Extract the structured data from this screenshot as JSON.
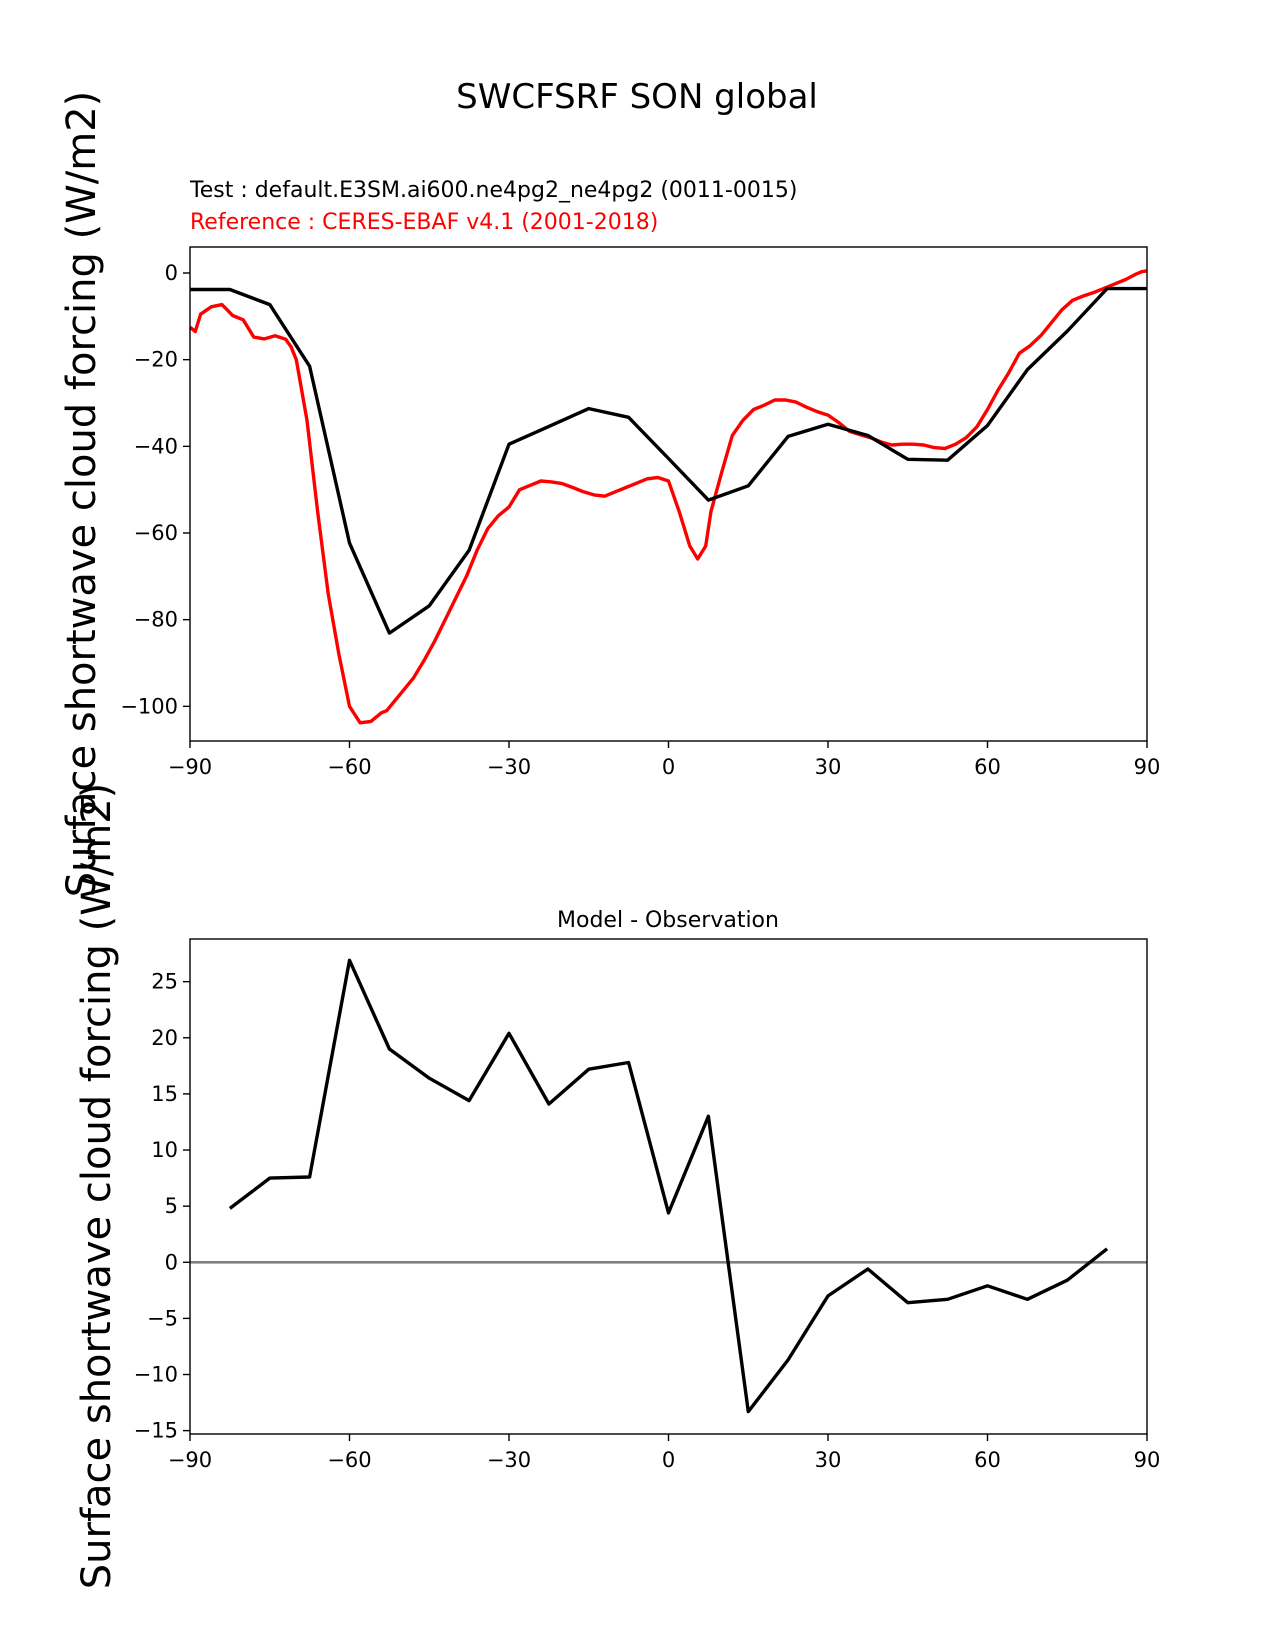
{
  "figure": {
    "title": "SWCFSRF SON global"
  },
  "chart_data": [
    {
      "type": "line",
      "subtitle_test": "Test : default.E3SM.ai600.ne4pg2_ne4pg2 (0011-0015)",
      "subtitle_reference": "Reference : CERES-EBAF v4.1 (2001-2018)",
      "xlabel": "",
      "ylabel": "Surface shortwave cloud forcing (W/m2)",
      "xlim": [
        -90,
        90
      ],
      "ylim": [
        -108,
        6
      ],
      "xticks": [
        -90,
        -60,
        -30,
        0,
        30,
        60,
        90
      ],
      "xtick_labels": [
        "−90",
        "−60",
        "−30",
        "0",
        "30",
        "60",
        "90"
      ],
      "yticks": [
        0,
        -20,
        -40,
        -60,
        -80,
        -100
      ],
      "ytick_labels": [
        "0",
        "−20",
        "−40",
        "−60",
        "−80",
        "−100"
      ],
      "grid": false,
      "series": [
        {
          "name": "Test",
          "color": "#000000",
          "x": [
            -90,
            -82.5,
            -75,
            -67.5,
            -60,
            -52.5,
            -45,
            -37.5,
            -30,
            -22.5,
            -15,
            -7.5,
            0,
            7.5,
            15,
            22.5,
            30,
            37.5,
            45,
            52.5,
            60,
            67.5,
            75,
            82.5,
            90
          ],
          "y": [
            -3.8,
            -3.8,
            -7.3,
            -21.5,
            -62.3,
            -83.1,
            -76.8,
            -64,
            -39.5,
            -35.4,
            -31.3,
            -33.3,
            -42.8,
            -52.4,
            -49.1,
            -37.7,
            -34.9,
            -37.5,
            -43,
            -43.2,
            -35.2,
            -22.3,
            -13.4,
            -3.6,
            -3.6
          ]
        },
        {
          "name": "Reference",
          "color": "#ff0000",
          "x": [
            -90,
            -89,
            -88,
            -86,
            -84,
            -83,
            -82,
            -80,
            -78,
            -76,
            -74,
            -72,
            -71,
            -70,
            -68,
            -66,
            -64,
            -62,
            -60,
            -58,
            -56,
            -54,
            -53,
            -52,
            -50,
            -48,
            -46,
            -44,
            -42,
            -40,
            -38,
            -36,
            -34,
            -32,
            -30,
            -28,
            -26,
            -24,
            -22,
            -20,
            -18,
            -16,
            -14,
            -12,
            -10,
            -8,
            -6,
            -4,
            -2,
            0,
            2,
            4,
            5.5,
            7,
            8,
            10,
            12,
            14,
            16,
            18,
            20,
            22,
            24,
            26,
            28,
            30,
            32,
            34,
            36,
            38,
            40,
            42,
            44,
            46,
            48,
            50,
            52,
            54,
            56,
            58,
            60,
            62,
            64,
            66,
            68,
            70,
            72,
            74,
            76,
            78,
            80,
            82,
            84,
            86,
            88,
            89,
            90
          ],
          "y": [
            -12.5,
            -13.5,
            -9.5,
            -7.8,
            -7.3,
            -8.5,
            -9.8,
            -10.8,
            -14.8,
            -15.2,
            -14.5,
            -15.3,
            -17,
            -20,
            -34,
            -55,
            -74,
            -88,
            -100,
            -103.8,
            -103.5,
            -101.5,
            -101,
            -99.5,
            -96.5,
            -93.5,
            -89.5,
            -85,
            -80,
            -75,
            -70,
            -64,
            -59,
            -56,
            -54,
            -50,
            -49,
            -48,
            -48.2,
            -48.6,
            -49.5,
            -50.5,
            -51.2,
            -51.5,
            -50.5,
            -49.5,
            -48.5,
            -47.5,
            -47.2,
            -48,
            -55,
            -63,
            -66,
            -63,
            -55,
            -46,
            -37.5,
            -34,
            -31.5,
            -30.5,
            -29.3,
            -29.3,
            -29.8,
            -31,
            -32,
            -32.8,
            -34.5,
            -36.5,
            -37.3,
            -38,
            -39,
            -39.7,
            -39.5,
            -39.5,
            -39.7,
            -40.3,
            -40.5,
            -39.5,
            -38,
            -35.5,
            -31.5,
            -27,
            -23,
            -18.5,
            -16.8,
            -14.5,
            -11.5,
            -8.5,
            -6.3,
            -5.3,
            -4.5,
            -3.5,
            -2.5,
            -1.5,
            -0.2,
            0.3,
            0.5
          ]
        }
      ]
    },
    {
      "type": "line",
      "title": "Model - Observation",
      "xlabel": "",
      "ylabel": "Surface shortwave cloud forcing (W/m2)",
      "xlim": [
        -90,
        90
      ],
      "ylim": [
        -15.3,
        28.8
      ],
      "xticks": [
        -90,
        -60,
        -30,
        0,
        30,
        60,
        90
      ],
      "xtick_labels": [
        "−90",
        "−60",
        "−30",
        "0",
        "30",
        "60",
        "90"
      ],
      "yticks": [
        25,
        20,
        15,
        10,
        5,
        0,
        -5,
        -10,
        -15
      ],
      "ytick_labels": [
        "25",
        "20",
        "15",
        "10",
        "5",
        "0",
        "−5",
        "−10",
        "−15"
      ],
      "grid": false,
      "zero_line_color": "#808080",
      "series": [
        {
          "name": "Model - Observation",
          "color": "#000000",
          "x": [
            -82.5,
            -75,
            -67.5,
            -60,
            -52.5,
            -45,
            -37.5,
            -30,
            -22.5,
            -15,
            -7.5,
            0,
            7.5,
            15,
            22.5,
            30,
            37.5,
            45,
            52.5,
            60,
            67.5,
            75,
            82.5
          ],
          "y": [
            4.8,
            7.5,
            7.6,
            26.9,
            19,
            16.4,
            14.4,
            20.4,
            14.1,
            17.2,
            17.8,
            4.4,
            13,
            -13.3,
            -8.7,
            -3,
            -0.6,
            -3.6,
            -3.3,
            -2.1,
            -3.3,
            -1.6,
            1.2
          ]
        }
      ]
    }
  ]
}
